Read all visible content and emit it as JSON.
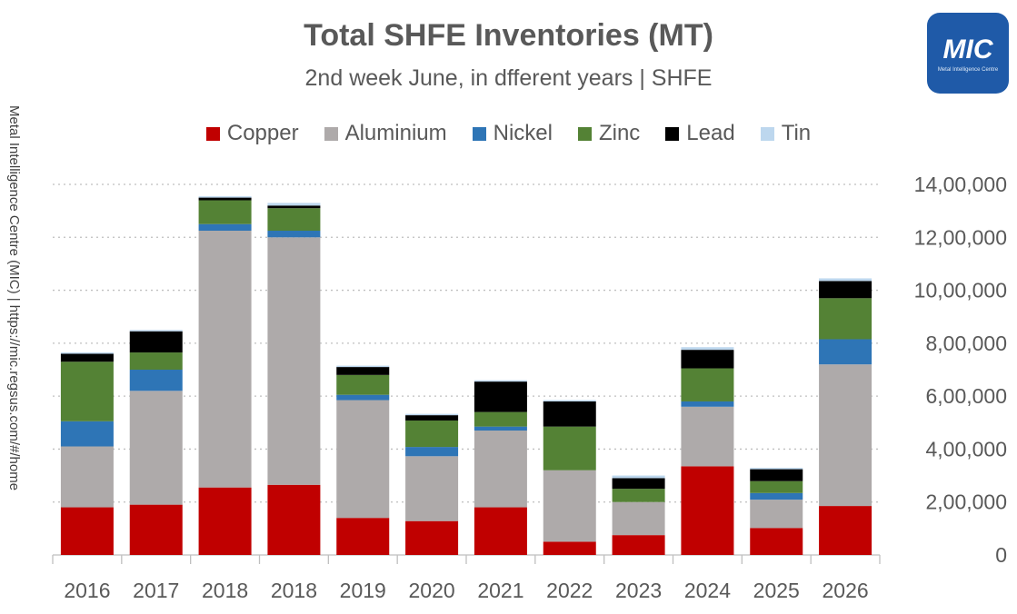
{
  "chart_data": {
    "type": "bar",
    "stacked": true,
    "title": "Total SHFE Inventories (MT)",
    "subtitle": "2nd week June, in dfferent years | SHFE",
    "categories": [
      "2016",
      "2017",
      "2018",
      "2018",
      "2019",
      "2020",
      "2021",
      "2022",
      "2023",
      "2024",
      "2025",
      "2026"
    ],
    "series": [
      {
        "name": "Copper",
        "color": "#c00000",
        "values": [
          180000,
          190000,
          255000,
          265000,
          140000,
          128000,
          180000,
          50000,
          75000,
          335000,
          102000,
          185000
        ]
      },
      {
        "name": "Aluminium",
        "color": "#aeaaaa",
        "values": [
          230000,
          430000,
          970000,
          935000,
          445000,
          245000,
          290000,
          270000,
          125000,
          225000,
          107000,
          535000
        ]
      },
      {
        "name": "Nickel",
        "color": "#2e75b6",
        "values": [
          95000,
          80000,
          25000,
          25000,
          20000,
          35000,
          15000,
          0,
          0,
          20000,
          25000,
          95000
        ]
      },
      {
        "name": "Zinc",
        "color": "#548235",
        "values": [
          225000,
          65000,
          90000,
          85000,
          75000,
          100000,
          55000,
          165000,
          50000,
          125000,
          45000,
          155000
        ]
      },
      {
        "name": "Lead",
        "color": "#000000",
        "values": [
          30000,
          80000,
          10000,
          10000,
          30000,
          20000,
          115000,
          95000,
          40000,
          70000,
          45000,
          65000
        ]
      },
      {
        "name": "Tin",
        "color": "#bdd7ee",
        "values": [
          5000,
          5000,
          5000,
          10000,
          5000,
          5000,
          5000,
          5000,
          10000,
          10000,
          5000,
          10000
        ]
      }
    ],
    "yaxis": {
      "min": 0,
      "max": 1400000,
      "position": "right",
      "tick_labels": [
        "0",
        "2,00,000",
        "4,00,000",
        "6,00,000",
        "8,00,000",
        "10,00,000",
        "12,00,000",
        "14,00,000"
      ],
      "tick_values": [
        0,
        200000,
        400000,
        600000,
        800000,
        1000000,
        1200000,
        1400000
      ]
    },
    "grid": "dotted horizontal",
    "legend_position": "top"
  },
  "side_note": "Metal Intelligence Centre (MIC) | https://mic.regsus.com/#/home",
  "logo": {
    "text": "MIC",
    "sub": "Metal Intelligence Centre"
  }
}
